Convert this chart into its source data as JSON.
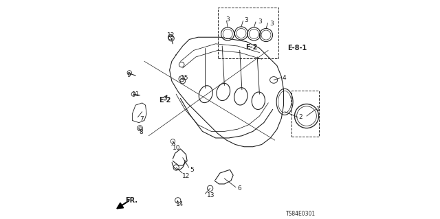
{
  "bg_color": "#ffffff",
  "diagram_color": "#222222",
  "part_number": "TS84E0301",
  "fig_width": 6.4,
  "fig_height": 3.19,
  "dpi": 100
}
